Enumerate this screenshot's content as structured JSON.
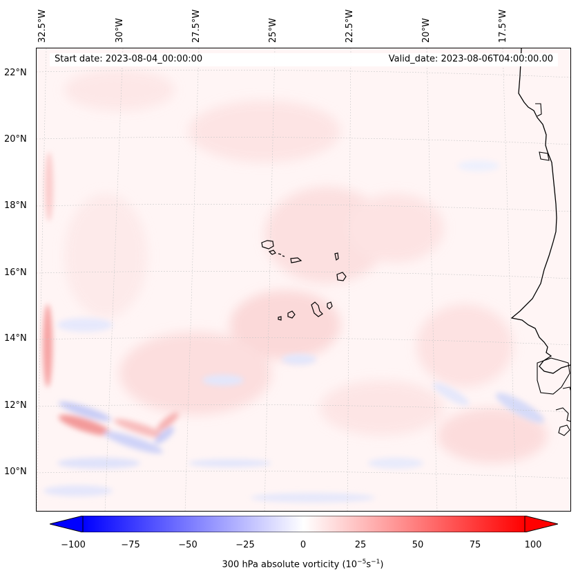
{
  "header": {
    "start_date": "Start date: 2023-08-04_00:00:00",
    "valid_date": "Valid_date: 2023-08-06T04:00:00.00"
  },
  "map": {
    "projection": "Lambert conformal",
    "region": "Cape Verde Islands and West African coast",
    "gridlines": true,
    "longitude_labels": [
      "32.5°W",
      "30°W",
      "27.5°W",
      "25°W",
      "22.5°W",
      "20°W",
      "17.5°W"
    ],
    "latitude_labels": [
      "22°N",
      "20°N",
      "18°N",
      "16°N",
      "14°N",
      "12°N",
      "10°N"
    ],
    "field": "300 hPa absolute vorticity",
    "colormap": "bwr",
    "colors": {
      "negative": "#0000ff",
      "zero": "#ffffff",
      "positive": "#ff0000",
      "coast": "#000000"
    }
  },
  "colorbar": {
    "ticks": [
      "−100",
      "−75",
      "−50",
      "−25",
      "0",
      "25",
      "50",
      "75",
      "100"
    ],
    "label_prefix": "300 hPa absolute vorticity (10",
    "label_exp1": "−5",
    "label_mid": "s",
    "label_exp2": "−1",
    "label_suffix": ")",
    "range": [
      -100,
      100
    ],
    "extend": "both"
  }
}
